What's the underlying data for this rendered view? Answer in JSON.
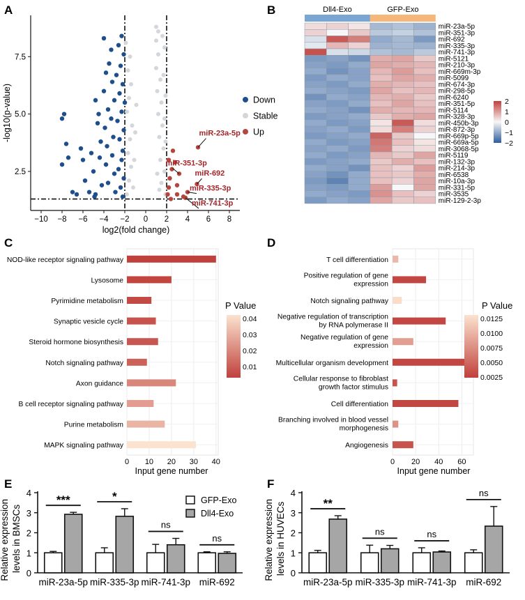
{
  "colors": {
    "down": "#1f4e8c",
    "stable": "#d3d6da",
    "up": "#b5463f",
    "heat_low": "#2c5d9e",
    "heat_mid": "#f7f7f7",
    "heat_high": "#c0403c",
    "group_dll4": "#7aa6d3",
    "group_gfp": "#f5b77a",
    "pv_high": "#fbe3cf",
    "pv_low": "#c0403c",
    "bar_gray": "#a6a6a6",
    "label_red": "#a3262a"
  },
  "chart_data": [
    {
      "panel": "A",
      "type": "scatter",
      "xlabel": "log2(fold change)",
      "ylabel": "-log10(p-value)",
      "xlim": [
        -11,
        9
      ],
      "ylim": [
        0.8,
        9.3
      ],
      "xticks": [
        -10,
        -8,
        -6,
        -4,
        -2,
        0,
        2,
        4,
        6,
        8
      ],
      "yticks": [
        2.5,
        5.0,
        7.5
      ],
      "xtick_labels": [
        "−10",
        "−8",
        "−6",
        "−4",
        "−2",
        "0",
        "2",
        "4",
        "6",
        "8"
      ],
      "ytick_labels": [
        "2.5",
        "5.0",
        "7.5"
      ],
      "threshold_x": [
        -2,
        2
      ],
      "threshold_y": 1.3,
      "legend": [
        {
          "label": "Down",
          "key": "down"
        },
        {
          "label": "Stable",
          "key": "stable"
        },
        {
          "label": "Up",
          "key": "up"
        }
      ],
      "down": [
        [
          -2.2,
          1.4
        ],
        [
          -2.4,
          1.8
        ],
        [
          -2.1,
          2.2
        ],
        [
          -2.6,
          2.6
        ],
        [
          -2.3,
          3.0
        ],
        [
          -2.2,
          3.4
        ],
        [
          -2.5,
          3.9
        ],
        [
          -2.1,
          4.3
        ],
        [
          -2.7,
          4.7
        ],
        [
          -2.3,
          5.1
        ],
        [
          -2.0,
          5.5
        ],
        [
          -2.5,
          5.9
        ],
        [
          -2.2,
          6.3
        ],
        [
          -2.8,
          6.7
        ],
        [
          -2.4,
          7.1
        ],
        [
          -2.1,
          7.6
        ],
        [
          -2.6,
          8.0
        ],
        [
          -2.3,
          8.4
        ],
        [
          -2.9,
          1.6
        ],
        [
          -3.0,
          2.4
        ],
        [
          -3.2,
          3.2
        ],
        [
          -3.1,
          4.0
        ],
        [
          -3.3,
          4.8
        ],
        [
          -3.0,
          5.6
        ],
        [
          -3.2,
          6.4
        ],
        [
          -3.5,
          7.2
        ],
        [
          -3.3,
          7.8
        ],
        [
          -3.6,
          2.0
        ],
        [
          -3.8,
          2.8
        ],
        [
          -3.7,
          3.6
        ],
        [
          -3.9,
          4.4
        ],
        [
          -3.6,
          5.2
        ],
        [
          -4.0,
          6.0
        ],
        [
          -3.8,
          6.8
        ],
        [
          -4.0,
          8.3
        ],
        [
          -4.2,
          1.9
        ],
        [
          -4.4,
          3.1
        ],
        [
          -4.3,
          3.8
        ],
        [
          -4.5,
          5.0
        ],
        [
          -4.8,
          5.6
        ],
        [
          -5.0,
          2.5
        ],
        [
          -5.2,
          3.3
        ],
        [
          -4.6,
          4.6
        ],
        [
          -5.4,
          1.6
        ],
        [
          -5.8,
          2.1
        ],
        [
          -6.0,
          3.0
        ],
        [
          -6.2,
          3.5
        ],
        [
          -6.6,
          1.5
        ],
        [
          -7.0,
          1.6
        ],
        [
          -7.4,
          3.1
        ],
        [
          -7.6,
          3.7
        ],
        [
          -8.0,
          4.8
        ],
        [
          -7.8,
          5.0
        ],
        [
          -8.0,
          2.8
        ],
        [
          -4.8,
          1.5
        ],
        [
          -4.9,
          1.4
        ]
      ],
      "stable": [
        [
          -1.8,
          1.5
        ],
        [
          -1.6,
          2.1
        ],
        [
          -1.4,
          2.7
        ],
        [
          -1.7,
          3.3
        ],
        [
          -1.5,
          3.9
        ],
        [
          -1.3,
          4.5
        ],
        [
          -1.8,
          5.1
        ],
        [
          -1.6,
          5.7
        ],
        [
          -1.4,
          6.3
        ],
        [
          -1.7,
          6.9
        ],
        [
          -1.5,
          7.5
        ],
        [
          -1.9,
          8.1
        ],
        [
          -1.2,
          1.8
        ],
        [
          -1.1,
          3.0
        ],
        [
          -1.0,
          4.2
        ],
        [
          -0.9,
          5.4
        ],
        [
          1.0,
          8.8
        ],
        [
          1.2,
          8.6
        ],
        [
          1.0,
          8.2
        ],
        [
          1.2,
          7.6
        ],
        [
          1.0,
          7.0
        ],
        [
          1.4,
          6.5
        ],
        [
          1.1,
          6.0
        ],
        [
          1.5,
          5.5
        ],
        [
          1.2,
          5.0
        ],
        [
          1.6,
          4.5
        ],
        [
          1.3,
          4.0
        ],
        [
          1.7,
          3.5
        ],
        [
          1.4,
          3.0
        ],
        [
          1.8,
          2.5
        ],
        [
          1.5,
          2.0
        ],
        [
          1.9,
          1.5
        ],
        [
          1.6,
          8.4
        ],
        [
          1.8,
          7.9
        ],
        [
          1.7,
          6.7
        ],
        [
          1.9,
          5.8
        ],
        [
          1.8,
          4.8
        ],
        [
          1.9,
          3.8
        ],
        [
          1.1,
          2.4
        ],
        [
          1.3,
          1.7
        ]
      ],
      "up": [
        [
          2.1,
          1.5
        ],
        [
          2.2,
          1.8
        ],
        [
          2.3,
          2.2
        ],
        [
          2.5,
          2.6
        ],
        [
          2.2,
          3.0
        ],
        [
          2.6,
          3.4
        ],
        [
          2.4,
          1.3
        ],
        [
          3.0,
          1.5
        ],
        [
          3.0,
          1.9
        ],
        [
          2.8,
          2.9
        ],
        [
          3.6,
          1.4
        ]
      ],
      "labels": [
        {
          "text": "miR-23a-5p",
          "x": 5.0,
          "y": 3.55,
          "lx": 5.9,
          "ly": 4.0
        },
        {
          "text": "miR-351-3p",
          "x": 3.2,
          "y": 2.4,
          "lx": 2.7,
          "ly": 2.7
        },
        {
          "text": "miR-692",
          "x": 4.9,
          "y": 1.95,
          "lx": 5.5,
          "ly": 2.25
        },
        {
          "text": "miR-335-3p",
          "x": 4.0,
          "y": 1.6,
          "lx": 5.0,
          "ly": 1.6
        },
        {
          "text": "miR-741-3p",
          "x": 3.8,
          "y": 1.35,
          "lx": 5.2,
          "ly": 0.95
        }
      ]
    },
    {
      "panel": "B",
      "type": "heatmap",
      "groups": [
        "Dll4-Exo",
        "GFP-Exo"
      ],
      "legend_ticks": [
        "2",
        "1",
        "0",
        "−1",
        "−2"
      ],
      "rows": [
        "miR-23a-5p",
        "miR-351-3p",
        "miR-692",
        "miR-335-3p",
        "miR-741-3p",
        "miR-5121",
        "miR-210-3p",
        "miR-669m-3p",
        "miR-5099",
        "miR-674-3p",
        "miR-298-5p",
        "miR-6240",
        "miR-351-5p",
        "miR-5114",
        "miR-328-3p",
        "miR-450b-3p",
        "miR-872-3p",
        "miR-669p-5p",
        "miR-669a-5p",
        "miR-3068-5p",
        "miR-5119",
        "miR-132-3p",
        "miR-214-3p",
        "miR-6538",
        "miR-10a-3p",
        "miR-331-5p",
        "miR-3535",
        "miR-129-2-3p"
      ],
      "values": [
        [
          0.3,
          0.4,
          0.2,
          -0.8,
          -0.7,
          -0.9
        ],
        [
          0.4,
          0.0,
          0.5,
          -0.6,
          -0.5,
          -0.7
        ],
        [
          -0.3,
          1.7,
          1.3,
          -1.0,
          -0.8,
          -1.2
        ],
        [
          -0.2,
          0.7,
          0.4,
          -0.9,
          -0.8,
          -0.9
        ],
        [
          1.8,
          -0.3,
          -0.4,
          -0.7,
          -0.8,
          -0.6
        ],
        [
          -1.2,
          -1.1,
          -1.3,
          0.8,
          0.9,
          0.5
        ],
        [
          -1.1,
          -1.2,
          -1.0,
          0.9,
          0.8,
          0.7
        ],
        [
          -1.0,
          -1.3,
          -1.1,
          0.7,
          1.0,
          0.6
        ],
        [
          -1.2,
          -1.0,
          -1.1,
          0.6,
          0.9,
          0.8
        ],
        [
          -1.1,
          -1.2,
          -1.0,
          0.8,
          0.7,
          0.6
        ],
        [
          -1.0,
          -1.1,
          -1.2,
          0.9,
          0.6,
          0.7
        ],
        [
          -1.3,
          -1.0,
          -1.1,
          0.7,
          0.8,
          0.5
        ],
        [
          -1.1,
          -1.2,
          -1.0,
          0.6,
          0.9,
          0.6
        ],
        [
          -1.0,
          -1.1,
          -1.3,
          0.8,
          0.7,
          0.7
        ],
        [
          -1.2,
          -1.1,
          -1.0,
          0.5,
          0.8,
          0.9
        ],
        [
          -1.0,
          -1.2,
          -1.1,
          0.2,
          1.7,
          0.3
        ],
        [
          -1.1,
          -1.0,
          -1.2,
          0.3,
          1.3,
          0.4
        ],
        [
          -1.2,
          -1.1,
          -1.0,
          1.6,
          0.5,
          0.0
        ],
        [
          -1.0,
          -1.2,
          -1.1,
          1.4,
          0.6,
          0.2
        ],
        [
          -1.1,
          -1.0,
          -1.2,
          1.3,
          0.4,
          0.3
        ],
        [
          -1.0,
          -1.2,
          -1.1,
          0.7,
          0.5,
          0.9
        ],
        [
          -1.2,
          -1.1,
          -1.0,
          0.5,
          0.8,
          0.6
        ],
        [
          -1.0,
          -1.1,
          -1.3,
          0.6,
          0.4,
          1.0
        ],
        [
          -1.1,
          -1.3,
          -1.0,
          0.6,
          0.5,
          0.8
        ],
        [
          -1.2,
          -1.5,
          -1.0,
          0.6,
          0.4,
          0.9
        ],
        [
          -1.1,
          -1.2,
          -1.0,
          1.0,
          0.0,
          0.9
        ],
        [
          -1.0,
          -1.1,
          -1.2,
          1.1,
          0.6,
          0.4
        ],
        [
          -1.2,
          -1.0,
          -1.1,
          0.9,
          0.5,
          0.6
        ]
      ]
    },
    {
      "panel": "C",
      "type": "bar",
      "orientation": "horizontal",
      "xlabel": "Input gene number",
      "xlim": [
        0,
        41
      ],
      "xticks": [
        0,
        10,
        20,
        30,
        40
      ],
      "legend_title": "P Value",
      "legend_ticks": [
        "0.04",
        "0.03",
        "0.02",
        "0.01"
      ],
      "pv_range": [
        0.005,
        0.04
      ],
      "categories": [
        "NOD-like receptor signaling pathway",
        "Lysosome",
        "Pyrimidine metabolism",
        "Synaptic vesicle cycle",
        "Steroid hormone biosynthesis",
        "Notch signaling pathway",
        "Axon guidance",
        "B cell receptor signaling pathway",
        "Purine metabolism",
        "MAPK signaling pathway"
      ],
      "values": [
        40,
        20,
        11,
        13,
        14,
        9,
        22,
        12,
        17,
        31
      ],
      "pvalues": [
        0.005,
        0.006,
        0.007,
        0.009,
        0.01,
        0.012,
        0.02,
        0.025,
        0.03,
        0.04
      ]
    },
    {
      "panel": "D",
      "type": "bar",
      "orientation": "horizontal",
      "xlabel": "Input gene number",
      "xlim": [
        0,
        70
      ],
      "xticks": [
        0,
        20,
        40,
        60
      ],
      "legend_title": "P Value",
      "legend_ticks": [
        "0.0125",
        "0.0100",
        "0.0075",
        "0.0050",
        "0.0025"
      ],
      "pv_range": [
        0.0005,
        0.0135
      ],
      "categories": [
        "T cell differentiation",
        "Positive regulation of gene expression",
        "Notch signaling pathway",
        "Negative regulation of transcription by RNA polymerase II",
        "Negative regulation of gene expression",
        "Multicellular organism development",
        "Cellular response to fibroblast growth factor stimulus",
        "Cell differentiation",
        "Branching involved in blood vessel morphogenesis",
        "Angiogenesis"
      ],
      "values": [
        5,
        29,
        8,
        46,
        18,
        69,
        4,
        57,
        5,
        18
      ],
      "pvalues": [
        0.01,
        0.001,
        0.013,
        0.001,
        0.008,
        0.001,
        0.002,
        0.001,
        0.007,
        0.002
      ]
    },
    {
      "panel": "E",
      "type": "bar",
      "ylabel": "Relative expression levels in BMSCs",
      "ylim": [
        0,
        4
      ],
      "yticks": [
        0,
        1,
        2,
        3,
        4
      ],
      "categories": [
        "miR-23a-5p",
        "miR-335-3p",
        "miR-741-3p",
        "miR-692"
      ],
      "series": [
        {
          "name": "GFP-Exo",
          "values": [
            1.0,
            1.0,
            1.0,
            1.0
          ],
          "errors": [
            0.07,
            0.25,
            0.42,
            0.05
          ]
        },
        {
          "name": "Dll4-Exo",
          "values": [
            2.92,
            2.82,
            1.4,
            0.97
          ],
          "errors": [
            0.1,
            0.38,
            0.32,
            0.08
          ]
        }
      ],
      "significance": [
        "***",
        "*",
        "ns",
        "ns"
      ]
    },
    {
      "panel": "F",
      "type": "bar",
      "ylabel": "Relative expression levels in HUVECs",
      "ylim": [
        0,
        4
      ],
      "yticks": [
        0,
        1,
        2,
        3,
        4
      ],
      "categories": [
        "miR-23a-5p",
        "miR-335-3p",
        "miR-741-3p",
        "miR-692"
      ],
      "series": [
        {
          "name": "GFP-Exo",
          "values": [
            1.0,
            1.0,
            1.0,
            1.0
          ],
          "errors": [
            0.12,
            0.38,
            0.25,
            0.15
          ]
        },
        {
          "name": "Dll4-Exo",
          "values": [
            2.68,
            1.2,
            1.04,
            2.33
          ],
          "errors": [
            0.17,
            0.17,
            0.05,
            0.98
          ]
        }
      ],
      "significance": [
        "**",
        "ns",
        "ns",
        "ns"
      ]
    }
  ]
}
